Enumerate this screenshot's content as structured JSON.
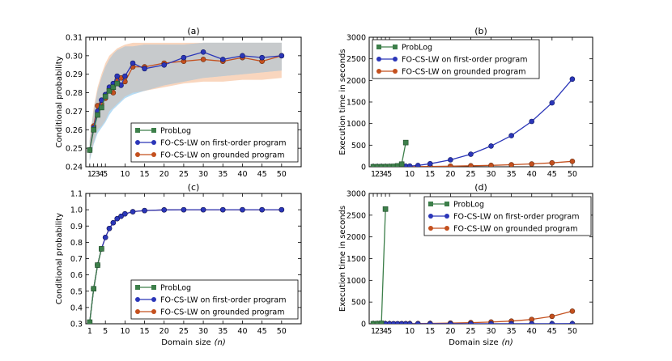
{
  "figure": {
    "xlabel": "Domain size",
    "xlabel_var": "(n)"
  },
  "legend_labels": {
    "problog": "ProbLog",
    "fo": "FO-CS-LW on first-order program",
    "gr": "FO-CS-LW on grounded program"
  },
  "colors": {
    "problog": "#3d7f4a",
    "fo": "#2b36b8",
    "gr": "#c4501e",
    "band_fo": "#9fd0f0",
    "band_gr": "#f7c8a8",
    "band_overlap": "#c9c9c9"
  },
  "chart_data": [
    {
      "id": "a",
      "title": "(a)",
      "type": "line",
      "ylabel": "Conditional probability",
      "xlim": [
        0,
        55
      ],
      "ylim": [
        0.24,
        0.31
      ],
      "yticks": [
        0.24,
        0.25,
        0.26,
        0.27,
        0.28,
        0.29,
        0.3,
        0.31
      ],
      "ytick_labels": [
        "0.24",
        "0.25",
        "0.26",
        "0.27",
        "0.28",
        "0.29",
        "0.30",
        "0.31"
      ],
      "xticks": [
        1,
        2,
        3,
        4,
        5,
        10,
        15,
        20,
        25,
        30,
        35,
        40,
        45,
        50
      ],
      "xtick_labels": [
        "1",
        "2",
        "3",
        "4",
        "5",
        "10",
        "15",
        "20",
        "25",
        "30",
        "35",
        "40",
        "45",
        "50"
      ],
      "legend_position": "lower-right",
      "bands": [
        {
          "series": "gr",
          "x": [
            1,
            2,
            3,
            4,
            5,
            6,
            7,
            8,
            9,
            10,
            12,
            15,
            20,
            25,
            30,
            35,
            40,
            45,
            50
          ],
          "lower": [
            0.244,
            0.253,
            0.26,
            0.262,
            0.265,
            0.27,
            0.272,
            0.274,
            0.276,
            0.278,
            0.28,
            0.281,
            0.283,
            0.285,
            0.286,
            0.286,
            0.287,
            0.287,
            0.288
          ],
          "upper": [
            0.255,
            0.272,
            0.283,
            0.29,
            0.296,
            0.3,
            0.302,
            0.304,
            0.305,
            0.306,
            0.307,
            0.307,
            0.307,
            0.307,
            0.307,
            0.307,
            0.307,
            0.307,
            0.307
          ]
        },
        {
          "series": "fo",
          "x": [
            1,
            2,
            3,
            4,
            5,
            6,
            7,
            8,
            9,
            10,
            12,
            15,
            20,
            25,
            30,
            35,
            40,
            45,
            50
          ],
          "lower": [
            0.243,
            0.252,
            0.258,
            0.261,
            0.264,
            0.268,
            0.271,
            0.273,
            0.275,
            0.277,
            0.279,
            0.281,
            0.284,
            0.286,
            0.288,
            0.289,
            0.29,
            0.291,
            0.292
          ],
          "upper": [
            0.254,
            0.27,
            0.281,
            0.288,
            0.294,
            0.298,
            0.301,
            0.303,
            0.304,
            0.305,
            0.305,
            0.306,
            0.306,
            0.306,
            0.307,
            0.307,
            0.307,
            0.307,
            0.307
          ]
        }
      ],
      "series": [
        {
          "key": "problog",
          "name": "ProbLog",
          "marker": "square",
          "x": [
            1,
            2,
            3,
            4,
            5,
            6,
            7,
            8
          ],
          "y": [
            0.249,
            0.26,
            0.268,
            0.272,
            0.278,
            0.281,
            0.283,
            0.285
          ]
        },
        {
          "key": "fo",
          "name": "FO-CS-LW on first-order program",
          "marker": "circle",
          "x": [
            1,
            2,
            3,
            4,
            5,
            6,
            7,
            8,
            9,
            10,
            12,
            15,
            20,
            25,
            30,
            35,
            40,
            45,
            50
          ],
          "y": [
            0.249,
            0.261,
            0.27,
            0.276,
            0.279,
            0.283,
            0.285,
            0.289,
            0.284,
            0.289,
            0.296,
            0.293,
            0.295,
            0.299,
            0.302,
            0.298,
            0.3,
            0.299,
            0.3
          ]
        },
        {
          "key": "gr",
          "name": "FO-CS-LW on grounded program",
          "marker": "circle",
          "x": [
            1,
            2,
            3,
            4,
            5,
            6,
            7,
            8,
            9,
            10,
            12,
            15,
            20,
            25,
            30,
            35,
            40,
            45,
            50
          ],
          "y": [
            0.249,
            0.262,
            0.273,
            0.274,
            0.277,
            0.282,
            0.28,
            0.287,
            0.288,
            0.286,
            0.294,
            0.294,
            0.296,
            0.297,
            0.298,
            0.297,
            0.299,
            0.297,
            0.3
          ]
        }
      ]
    },
    {
      "id": "b",
      "title": "(b)",
      "type": "line",
      "ylabel": "Execution time in seconds",
      "xlim": [
        0,
        55
      ],
      "ylim": [
        0,
        3000
      ],
      "yticks": [
        0,
        500,
        1000,
        1500,
        2000,
        2500,
        3000
      ],
      "ytick_labels": [
        "0",
        "500",
        "1000",
        "1500",
        "2000",
        "2500",
        "3000"
      ],
      "xticks": [
        1,
        2,
        3,
        4,
        5,
        10,
        15,
        20,
        25,
        30,
        35,
        40,
        45,
        50
      ],
      "xtick_labels": [
        "1",
        "2",
        "3",
        "4",
        "5",
        "10",
        "15",
        "20",
        "25",
        "30",
        "35",
        "40",
        "45",
        "50"
      ],
      "legend_position": "upper-left",
      "series": [
        {
          "key": "problog",
          "name": "ProbLog",
          "marker": "square",
          "x": [
            1,
            2,
            3,
            4,
            5,
            6,
            7,
            8,
            9
          ],
          "y": [
            0,
            0,
            1,
            2,
            4,
            8,
            20,
            60,
            560
          ]
        },
        {
          "key": "fo",
          "name": "FO-CS-LW on first-order program",
          "marker": "circle",
          "x": [
            1,
            2,
            3,
            4,
            5,
            6,
            7,
            8,
            9,
            10,
            12,
            15,
            20,
            25,
            30,
            35,
            40,
            45,
            50
          ],
          "y": [
            1,
            2,
            3,
            4,
            5,
            6,
            8,
            10,
            13,
            16,
            30,
            70,
            160,
            290,
            480,
            720,
            1050,
            1480,
            2030
          ]
        },
        {
          "key": "gr",
          "name": "FO-CS-LW on grounded program",
          "marker": "circle",
          "x": [
            1,
            2,
            3,
            4,
            5,
            6,
            7,
            8,
            9,
            10,
            12,
            15,
            20,
            25,
            30,
            35,
            40,
            45,
            50
          ],
          "y": [
            0,
            0,
            1,
            1,
            1,
            2,
            2,
            3,
            3,
            4,
            5,
            8,
            14,
            22,
            32,
            46,
            65,
            90,
            125
          ]
        }
      ]
    },
    {
      "id": "c",
      "title": "(c)",
      "type": "line",
      "ylabel": "Conditional probability",
      "xlim": [
        0,
        55
      ],
      "ylim": [
        0.3,
        1.1
      ],
      "yticks": [
        0.3,
        0.4,
        0.5,
        0.6,
        0.7,
        0.8,
        0.9,
        1.0,
        1.1
      ],
      "ytick_labels": [
        "0.3",
        "0.4",
        "0.5",
        "0.6",
        "0.7",
        "0.8",
        "0.9",
        "1.0",
        "1.1"
      ],
      "xticks": [
        1,
        5,
        10,
        15,
        20,
        25,
        30,
        35,
        40,
        45,
        50
      ],
      "xtick_labels": [
        "1",
        "5",
        "10",
        "15",
        "20",
        "25",
        "30",
        "35",
        "40",
        "45",
        "50"
      ],
      "legend_position": "lower-right",
      "series": [
        {
          "key": "problog",
          "name": "ProbLog",
          "marker": "square",
          "x": [
            1,
            2,
            3,
            4
          ],
          "y": [
            0.31,
            0.515,
            0.66,
            0.76
          ]
        },
        {
          "key": "fo",
          "name": "FO-CS-LW on first-order program",
          "marker": "circle",
          "x": [
            1,
            2,
            3,
            4,
            5,
            6,
            7,
            8,
            9,
            10,
            12,
            15,
            20,
            25,
            30,
            35,
            40,
            45,
            50
          ],
          "y": [
            0.31,
            0.515,
            0.66,
            0.76,
            0.83,
            0.885,
            0.92,
            0.945,
            0.96,
            0.975,
            0.988,
            0.995,
            0.999,
            1.0,
            1.0,
            1.0,
            1.0,
            1.0,
            1.0
          ]
        },
        {
          "key": "gr",
          "name": "FO-CS-LW on grounded program",
          "marker": "circle",
          "x": [
            1,
            2,
            3,
            4,
            5,
            6,
            7,
            8,
            9,
            10,
            12,
            15,
            20,
            25,
            30,
            35,
            40,
            45,
            50
          ],
          "y": [
            0.31,
            0.515,
            0.66,
            0.76,
            0.83,
            0.885,
            0.92,
            0.945,
            0.96,
            0.975,
            0.988,
            0.995,
            0.999,
            1.0,
            1.0,
            1.0,
            1.0,
            1.0,
            1.0
          ]
        }
      ]
    },
    {
      "id": "d",
      "title": "(d)",
      "type": "line",
      "ylabel": "Execution time in seconds",
      "xlim": [
        0,
        55
      ],
      "ylim": [
        0,
        3000
      ],
      "yticks": [
        0,
        500,
        1000,
        1500,
        2000,
        2500,
        3000
      ],
      "ytick_labels": [
        "0",
        "500",
        "1000",
        "1500",
        "2000",
        "2500",
        "3000"
      ],
      "xticks": [
        1,
        2,
        3,
        4,
        5,
        10,
        15,
        20,
        25,
        30,
        35,
        40,
        45,
        50
      ],
      "xtick_labels": [
        "1",
        "2",
        "3",
        "4",
        "5",
        "10",
        "15",
        "20",
        "25",
        "30",
        "35",
        "40",
        "45",
        "50"
      ],
      "legend_position": "upper-right",
      "series": [
        {
          "key": "problog",
          "name": "ProbLog",
          "marker": "square",
          "x": [
            1,
            2,
            3,
            4
          ],
          "y": [
            0,
            1,
            10,
            2640
          ]
        },
        {
          "key": "fo",
          "name": "FO-CS-LW on first-order program",
          "marker": "circle",
          "x": [
            1,
            2,
            3,
            4,
            5,
            6,
            7,
            8,
            9,
            10,
            12,
            15,
            20,
            25,
            30,
            35,
            40,
            45,
            50
          ],
          "y": [
            0,
            0,
            0,
            0,
            0,
            0,
            0,
            0,
            0,
            0,
            0,
            1,
            1,
            1,
            1,
            2,
            2,
            2,
            3
          ]
        },
        {
          "key": "gr",
          "name": "FO-CS-LW on grounded program",
          "marker": "circle",
          "x": [
            1,
            2,
            3,
            4,
            5,
            6,
            7,
            8,
            9,
            10,
            12,
            15,
            20,
            25,
            30,
            35,
            40,
            45,
            50
          ],
          "y": [
            0,
            0,
            1,
            1,
            1,
            2,
            2,
            3,
            3,
            4,
            6,
            9,
            16,
            26,
            40,
            62,
            100,
            170,
            290
          ]
        }
      ]
    }
  ]
}
